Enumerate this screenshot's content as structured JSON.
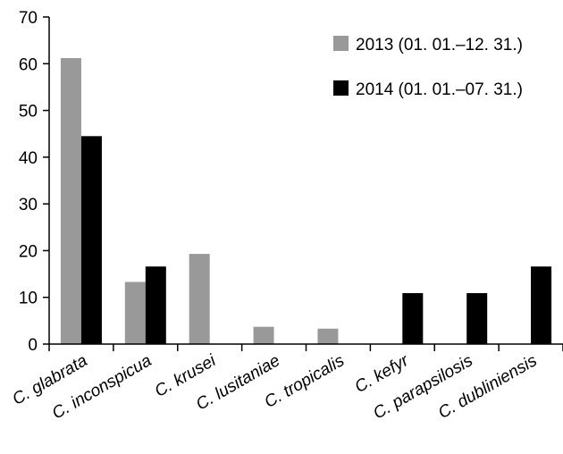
{
  "chart_data": {
    "type": "bar",
    "title": "",
    "xlabel": "",
    "ylabel": "",
    "ylim": [
      0,
      70
    ],
    "yticks": [
      0,
      10,
      20,
      30,
      40,
      50,
      60,
      70
    ],
    "grid": false,
    "legend_position": "top-right",
    "categories": [
      "C. glabrata",
      "C. inconspicua",
      "C. krusei",
      "C. lusitaniae",
      "C. tropicalis",
      "C. kefyr",
      "C. parapsilosis",
      "C. dubliniensis"
    ],
    "series": [
      {
        "name": "2013 (01. 01.–12. 31.)",
        "color": "#999999",
        "values": [
          61.2,
          13.3,
          19.3,
          3.7,
          3.3,
          0,
          0,
          0
        ]
      },
      {
        "name": "2014 (01. 01.–07. 31.)",
        "color": "#000000",
        "values": [
          44.5,
          16.6,
          0,
          0,
          0,
          10.9,
          10.9,
          16.6
        ]
      }
    ]
  }
}
